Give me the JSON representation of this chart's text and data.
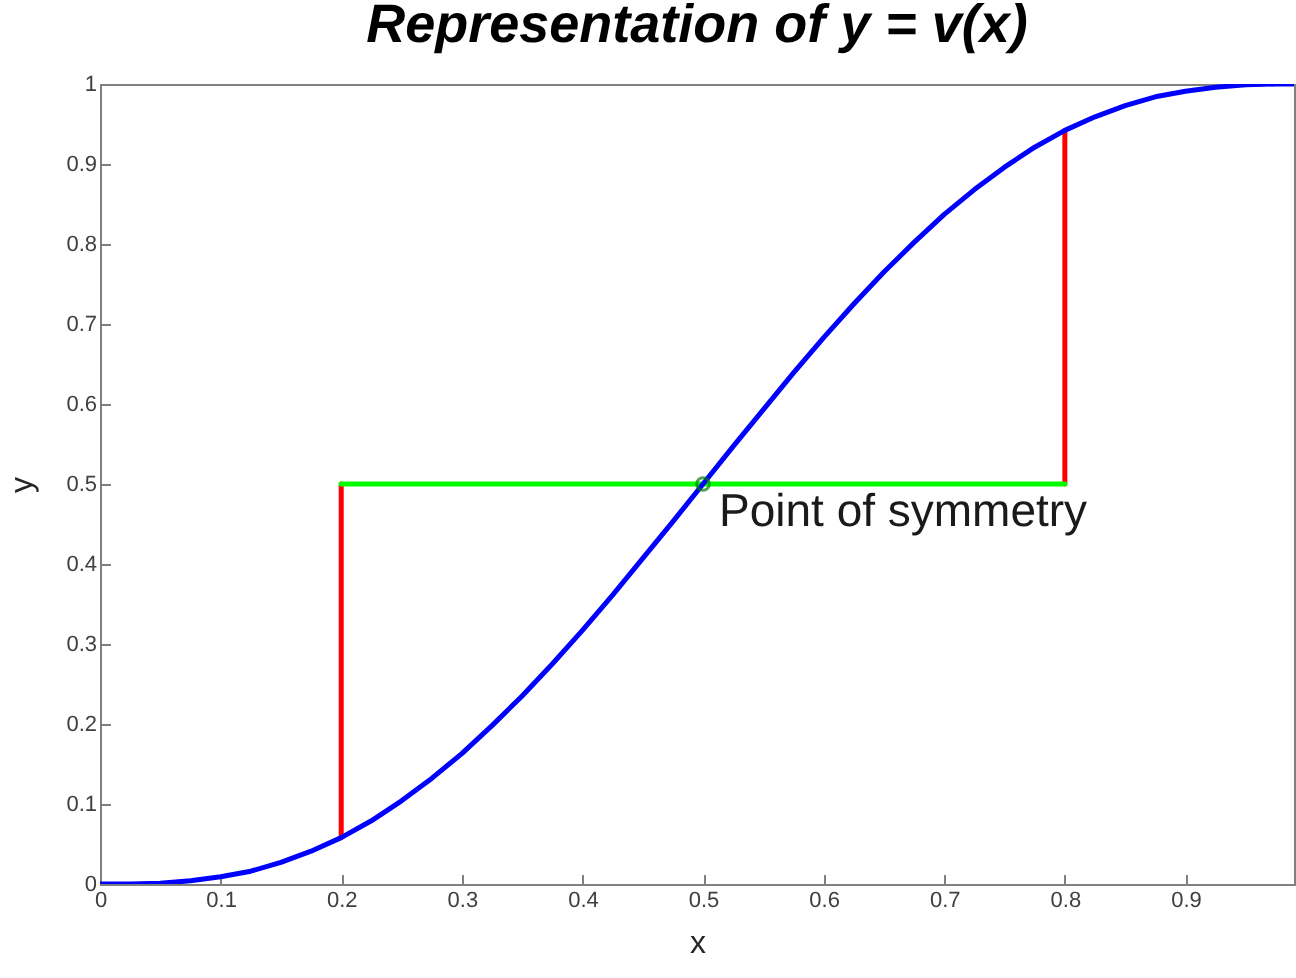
{
  "chart_data": {
    "type": "line",
    "title": "Representation of y = v(x)",
    "xlabel": "x",
    "ylabel": "y",
    "xlim": [
      0,
      0.99
    ],
    "ylim": [
      0,
      1
    ],
    "xticks": [
      0,
      0.1,
      0.2,
      0.3,
      0.4,
      0.5,
      0.6,
      0.7,
      0.8,
      0.9
    ],
    "yticks": [
      0,
      0.1,
      0.2,
      0.3,
      0.4,
      0.5,
      0.6,
      0.7,
      0.8,
      0.9,
      1
    ],
    "series": [
      {
        "color": "#ff0000",
        "x": [
          0.2,
          0.2
        ],
        "values": [
          0.058,
          0.5
        ]
      },
      {
        "color": "#ff0000",
        "x": [
          0.8,
          0.8
        ],
        "values": [
          0.5,
          0.942
        ]
      },
      {
        "color": "#00ff00",
        "x": [
          0.2,
          0.8
        ],
        "values": [
          0.5,
          0.5
        ]
      },
      {
        "color": "#0000ff",
        "x": [
          0,
          0.025,
          0.05,
          0.075,
          0.1,
          0.125,
          0.15,
          0.175,
          0.2,
          0.225,
          0.25,
          0.275,
          0.3,
          0.325,
          0.35,
          0.375,
          0.4,
          0.425,
          0.45,
          0.475,
          0.5,
          0.525,
          0.55,
          0.575,
          0.6,
          0.625,
          0.65,
          0.675,
          0.7,
          0.725,
          0.75,
          0.775,
          0.8,
          0.825,
          0.85,
          0.875,
          0.9,
          0.925,
          0.95,
          0.975,
          0.99
        ],
        "values": [
          0,
          0,
          0.001,
          0.004,
          0.009,
          0.016,
          0.027,
          0.041,
          0.058,
          0.079,
          0.104,
          0.132,
          0.163,
          0.198,
          0.235,
          0.275,
          0.317,
          0.361,
          0.407,
          0.453,
          0.5,
          0.547,
          0.593,
          0.639,
          0.683,
          0.725,
          0.765,
          0.802,
          0.837,
          0.868,
          0.896,
          0.921,
          0.942,
          0.959,
          0.973,
          0.984,
          0.991,
          0.996,
          0.999,
          1,
          1
        ]
      },
      {
        "type": "scatter",
        "color": "#008000",
        "marker": "circle",
        "x": [
          0.5
        ],
        "values": [
          0.5
        ]
      }
    ],
    "annotations": [
      {
        "text": "Point of symmetry",
        "x": 0.5,
        "y": 0.5
      }
    ]
  }
}
